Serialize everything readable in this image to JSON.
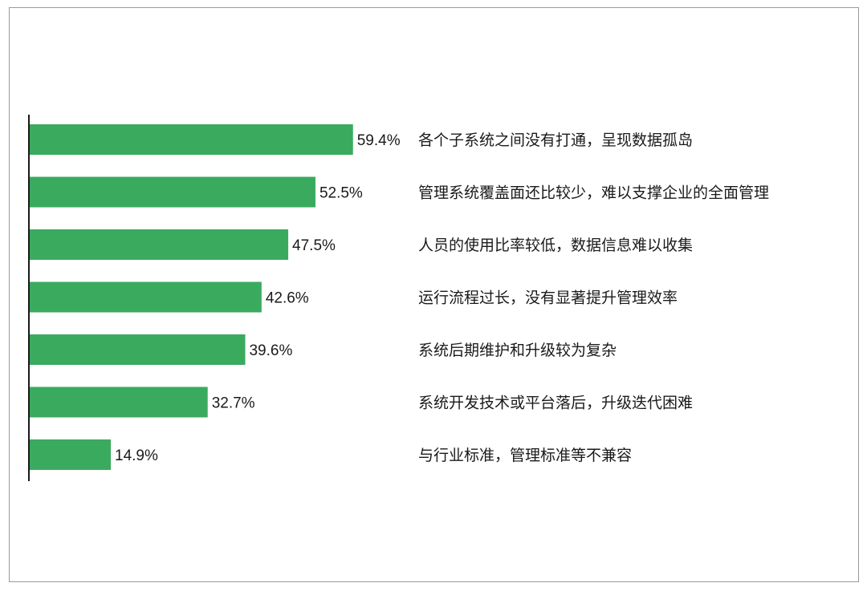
{
  "chart_data": {
    "type": "bar",
    "orientation": "horizontal",
    "categories": [
      "各个子系统之间没有打通，呈现数据孤岛",
      "管理系统覆盖面还比较少，难以支撑企业的全面管理",
      "人员的使用比率较低，数据信息难以收集",
      "运行流程过长，没有显著提升管理效率",
      "系统后期维护和升级较为复杂",
      "系统开发技术或平台落后，升级迭代困难",
      "与行业标准，管理标准等不兼容"
    ],
    "values": [
      59.4,
      52.5,
      47.5,
      42.6,
      39.6,
      32.7,
      14.9
    ],
    "value_labels": [
      "59.4%",
      "52.5%",
      "47.5%",
      "42.6%",
      "39.6%",
      "32.7%",
      "14.9%"
    ],
    "unit": "%",
    "bar_color": "#3aaa5f",
    "axis_color": "#1a1a1a",
    "grid": false,
    "legend": "none"
  }
}
